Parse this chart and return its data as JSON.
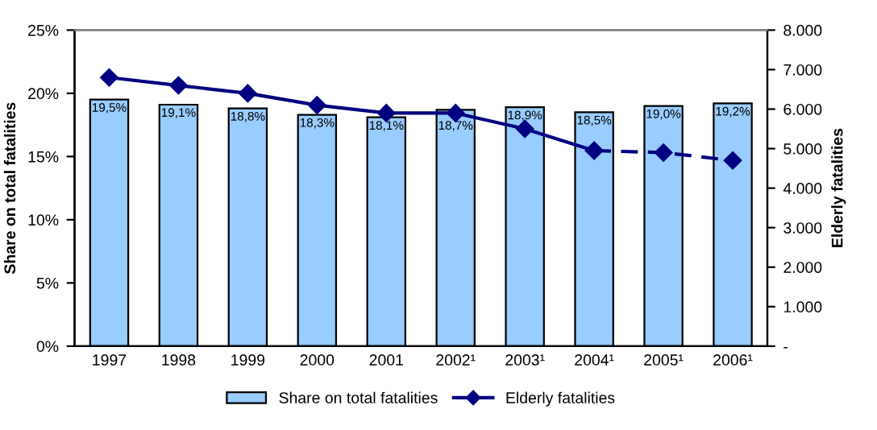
{
  "chart_data": {
    "type": "bar",
    "categories": [
      "1997",
      "1998",
      "1999",
      "2000",
      "2001",
      "2002¹",
      "2003¹",
      "2004¹",
      "2005¹",
      "2006¹"
    ],
    "ylabel": "Share on total fatalities",
    "y2label": "Elderly fatalities",
    "ylim": [
      0,
      25
    ],
    "yticks": [
      {
        "value": 0,
        "label": "0%"
      },
      {
        "value": 5,
        "label": "5%"
      },
      {
        "value": 10,
        "label": "10%"
      },
      {
        "value": 15,
        "label": "15%"
      },
      {
        "value": 20,
        "label": "20%"
      },
      {
        "value": 25,
        "label": "25%"
      }
    ],
    "y2lim": [
      0,
      8000
    ],
    "y2ticks": [
      {
        "value": 0,
        "label": "-"
      },
      {
        "value": 1000,
        "label": "1.000"
      },
      {
        "value": 2000,
        "label": "2.000"
      },
      {
        "value": 3000,
        "label": "3.000"
      },
      {
        "value": 4000,
        "label": "4.000"
      },
      {
        "value": 5000,
        "label": "5.000"
      },
      {
        "value": 6000,
        "label": "6.000"
      },
      {
        "value": 7000,
        "label": "7.000"
      },
      {
        "value": 8000,
        "label": "8.000"
      }
    ],
    "legend": "bottom",
    "grid": false,
    "series": [
      {
        "name": "Share on total fatalities",
        "color": "#99ccff",
        "values": [
          19.5,
          19.1,
          18.8,
          18.3,
          18.1,
          18.7,
          18.9,
          18.5,
          19.0,
          19.2
        ],
        "value_labels": [
          "19,5%",
          "19,1%",
          "18,8%",
          "18,3%",
          "18,1%",
          "18,7%",
          "18,9%",
          "18,5%",
          "19,0%",
          "19,2%"
        ]
      },
      {
        "name": "Elderly fatalities",
        "type": "line",
        "axis": "y2",
        "color": "#000080",
        "marker": "diamond",
        "line_style": "solid",
        "values": [
          6800,
          6600,
          6400,
          6100,
          5900,
          5900,
          5500,
          4950,
          null,
          null
        ]
      },
      {
        "type": "line",
        "axis": "y2",
        "color": "#000080",
        "marker": "diamond",
        "line_style": "dashed",
        "values": [
          null,
          null,
          null,
          null,
          null,
          null,
          null,
          4950,
          4900,
          4700
        ]
      }
    ]
  }
}
